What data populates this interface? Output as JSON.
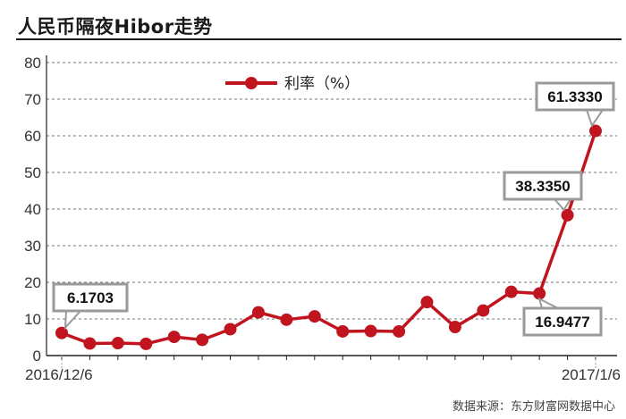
{
  "title": "人民币隔夜Hibor走势",
  "source": "数据来源：东方财富网数据中心",
  "chart_data": {
    "type": "line",
    "title": "人民币隔夜Hibor走势",
    "xlabel": "",
    "ylabel": "",
    "ylim": [
      0,
      80
    ],
    "yticks": [
      0,
      10,
      20,
      30,
      40,
      50,
      60,
      70,
      80
    ],
    "grid": "horizontal dashed",
    "legend_position": "top-center",
    "x_tick_labels": [
      "2016/12/6",
      "2017/1/6"
    ],
    "color": "#c0151f",
    "series": [
      {
        "name": "利率（%）",
        "values": [
          6.1703,
          3.3,
          3.4,
          3.2,
          5.1,
          4.3,
          7.2,
          11.8,
          9.8,
          10.7,
          6.6,
          6.7,
          6.6,
          14.6,
          7.8,
          12.3,
          17.4,
          16.9477,
          38.335,
          61.333
        ]
      }
    ],
    "annotations": [
      {
        "label": "6.1703",
        "index": 0
      },
      {
        "label": "16.9477",
        "index": 17
      },
      {
        "label": "38.3350",
        "index": 18
      },
      {
        "label": "61.3330",
        "index": 19
      }
    ]
  }
}
